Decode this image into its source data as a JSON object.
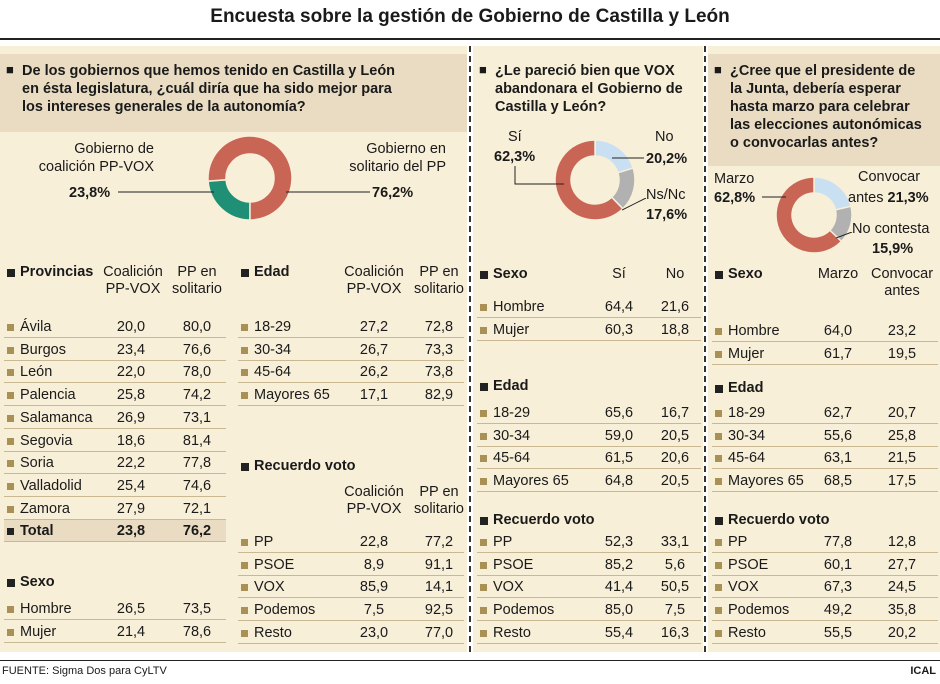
{
  "title": "Encuesta sobre la gestión de Gobierno de Castilla y León",
  "source": "FUENTE: Sigma Dos para CyLTV",
  "credit": "ICAL",
  "colors": {
    "red": "#c96554",
    "green": "#1f8f75",
    "lightblue": "#c9e0f2",
    "gray": "#b1b1b1"
  },
  "chart_data": [
    {
      "type": "pie",
      "title": "De los gobiernos que hemos tenido en Castilla y León en ésta legislatura, ¿cuál diría que ha sido mejor para los intereses generales de la autonomía?",
      "categories": [
        "Gobierno de coalición PP-VOX",
        "Gobierno en solitario del PP"
      ],
      "values": [
        23.8,
        76.2
      ]
    },
    {
      "type": "pie",
      "title": "¿Le pareció bien que VOX abandonara el Gobierno de Castilla y León?",
      "categories": [
        "Sí",
        "No",
        "Ns/Nc"
      ],
      "values": [
        62.3,
        20.2,
        17.6
      ]
    },
    {
      "type": "pie",
      "title": "¿Cree que el presidente de la Junta, debería esperar hasta marzo para celebrar las elecciones autonómicas o convocarlas antes?",
      "categories": [
        "Marzo",
        "Convocar antes",
        "No contesta"
      ],
      "values": [
        62.8,
        21.3,
        15.9
      ]
    }
  ],
  "q1": {
    "lines": [
      "De los gobiernos que hemos tenido en Castilla y León",
      "en ésta legislatura, ¿cuál diría que ha sido mejor para",
      "los intereses generales de la autonomía?"
    ],
    "left_label_1": "Gobierno de",
    "left_label_2": "coalición PP-VOX",
    "left_value": "23,8%",
    "right_label_1": "Gobierno en",
    "right_label_2": "solitario del PP",
    "right_value": "76,2%",
    "provincias": {
      "head": "Provincias",
      "col1a": "Coalición",
      "col1b": "PP-VOX",
      "col2a": "PP en",
      "col2b": "solitario",
      "rows": [
        {
          "l": "Ávila",
          "a": "20,0",
          "b": "80,0"
        },
        {
          "l": "Burgos",
          "a": "23,4",
          "b": "76,6"
        },
        {
          "l": "León",
          "a": "22,0",
          "b": "78,0"
        },
        {
          "l": "Palencia",
          "a": "25,8",
          "b": "74,2"
        },
        {
          "l": "Salamanca",
          "a": "26,9",
          "b": "73,1"
        },
        {
          "l": "Segovia",
          "a": "18,6",
          "b": "81,4"
        },
        {
          "l": "Soria",
          "a": "22,2",
          "b": "77,8"
        },
        {
          "l": "Valladolid",
          "a": "25,4",
          "b": "74,6"
        },
        {
          "l": "Zamora",
          "a": "27,9",
          "b": "72,1"
        },
        {
          "l": "Total",
          "a": "23,8",
          "b": "76,2"
        }
      ]
    },
    "sexo": {
      "head": "Sexo",
      "rows": [
        {
          "l": "Hombre",
          "a": "26,5",
          "b": "73,5"
        },
        {
          "l": "Mujer",
          "a": "21,4",
          "b": "78,6"
        }
      ]
    },
    "edad": {
      "head": "Edad",
      "col1a": "Coalición",
      "col1b": "PP-VOX",
      "col2a": "PP en",
      "col2b": "solitario",
      "rows": [
        {
          "l": "18-29",
          "a": "27,2",
          "b": "72,8"
        },
        {
          "l": "30-34",
          "a": "26,7",
          "b": "73,3"
        },
        {
          "l": "45-64",
          "a": "26,2",
          "b": "73,8"
        },
        {
          "l": "Mayores 65",
          "a": "17,1",
          "b": "82,9"
        }
      ]
    },
    "voto": {
      "head": "Recuerdo voto",
      "col1a": "Coalición",
      "col1b": "PP-VOX",
      "col2a": "PP en",
      "col2b": "solitario",
      "rows": [
        {
          "l": "PP",
          "a": "22,8",
          "b": "77,2"
        },
        {
          "l": "PSOE",
          "a": "8,9",
          "b": "91,1"
        },
        {
          "l": "VOX",
          "a": "85,9",
          "b": "14,1"
        },
        {
          "l": "Podemos",
          "a": "7,5",
          "b": "92,5"
        },
        {
          "l": "Resto",
          "a": "23,0",
          "b": "77,0"
        }
      ]
    }
  },
  "q2": {
    "lines": [
      "¿Le pareció bien que VOX",
      "abandonara el Gobierno de",
      "Castilla y León?"
    ],
    "si_label": "Sí",
    "si_value": "62,3%",
    "no_label": "No",
    "no_value": "20,2%",
    "ns_label": "Ns/Nc",
    "ns_value": "17,6%",
    "sexo": {
      "head": "Sexo",
      "col1": "Sí",
      "col2": "No",
      "rows": [
        {
          "l": "Hombre",
          "a": "64,4",
          "b": "21,6"
        },
        {
          "l": "Mujer",
          "a": "60,3",
          "b": "18,8"
        }
      ]
    },
    "edad": {
      "head": "Edad",
      "rows": [
        {
          "l": "18-29",
          "a": "65,6",
          "b": "16,7"
        },
        {
          "l": "30-34",
          "a": "59,0",
          "b": "20,5"
        },
        {
          "l": "45-64",
          "a": "61,5",
          "b": "20,6"
        },
        {
          "l": "Mayores 65",
          "a": "64,8",
          "b": "20,5"
        }
      ]
    },
    "voto": {
      "head": "Recuerdo voto",
      "rows": [
        {
          "l": "PP",
          "a": "52,3",
          "b": "33,1"
        },
        {
          "l": "PSOE",
          "a": "85,2",
          "b": "5,6"
        },
        {
          "l": "VOX",
          "a": "41,4",
          "b": "50,5"
        },
        {
          "l": "Podemos",
          "a": "85,0",
          "b": "7,5"
        },
        {
          "l": "Resto",
          "a": "55,4",
          "b": "16,3"
        }
      ]
    }
  },
  "q3": {
    "lines": [
      "¿Cree que el presidente de",
      "la Junta, debería esperar",
      "hasta marzo para celebrar",
      "las elecciones autonómicas",
      "o convocarlas antes?"
    ],
    "marzo_label": "Marzo",
    "marzo_value": "62,8%",
    "conv_label_1": "Convocar",
    "conv_label_2": "antes",
    "conv_value": "21,3%",
    "nc_label": "No contesta",
    "nc_value": "15,9%",
    "sexo": {
      "head": "Sexo",
      "col1": "Marzo",
      "col2a": "Convocar",
      "col2b": "antes",
      "rows": [
        {
          "l": "Hombre",
          "a": "64,0",
          "b": "23,2"
        },
        {
          "l": "Mujer",
          "a": "61,7",
          "b": "19,5"
        }
      ]
    },
    "edad": {
      "head": "Edad",
      "rows": [
        {
          "l": "18-29",
          "a": "62,7",
          "b": "20,7"
        },
        {
          "l": "30-34",
          "a": "55,6",
          "b": "25,8"
        },
        {
          "l": "45-64",
          "a": "63,1",
          "b": "21,5"
        },
        {
          "l": "Mayores 65",
          "a": "68,5",
          "b": "17,5"
        }
      ]
    },
    "voto": {
      "head": "Recuerdo voto",
      "rows": [
        {
          "l": "PP",
          "a": "77,8",
          "b": "12,8"
        },
        {
          "l": "PSOE",
          "a": "60,1",
          "b": "27,7"
        },
        {
          "l": "VOX",
          "a": "67,3",
          "b": "24,5"
        },
        {
          "l": "Podemos",
          "a": "49,2",
          "b": "35,8"
        },
        {
          "l": "Resto",
          "a": "55,5",
          "b": "20,2"
        }
      ]
    }
  }
}
